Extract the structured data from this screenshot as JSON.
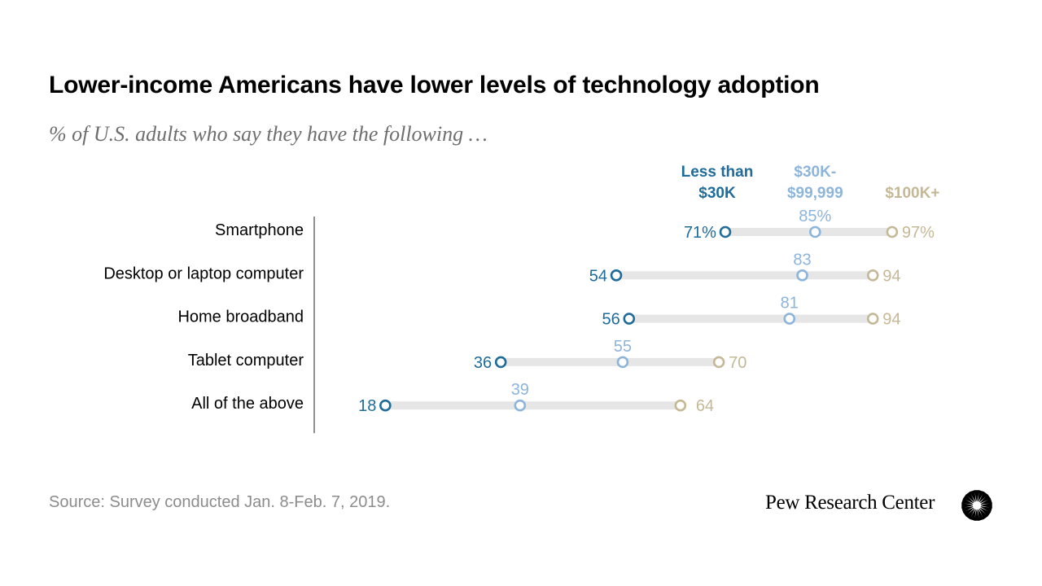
{
  "title": "Lower-income Americans have lower levels of technology adoption",
  "subtitle": "% of U.S. adults who say they have the following …",
  "source": "Source: Survey conducted Jan. 8-Feb. 7, 2019.",
  "brand": "Pew Research Center",
  "colors": {
    "low": "#1f6b9a",
    "mid": "#8db4db",
    "high": "#c4b897",
    "bar": "#e6e6e6",
    "axis": "#555555"
  },
  "chart_data": {
    "type": "dot-range",
    "title": "Lower-income Americans have lower levels of technology adoption",
    "subtitle": "% of U.S. adults who say they have the following …",
    "categories": [
      "Smartphone",
      "Desktop or laptop computer",
      "Home broadband",
      "Tablet computer",
      "All of the above"
    ],
    "series": [
      {
        "key": "low",
        "name": "Less than $30K",
        "legend_lines": [
          "Less than",
          "$30K"
        ],
        "values": [
          71,
          54,
          56,
          36,
          18
        ]
      },
      {
        "key": "mid",
        "name": "$30K-$99,999",
        "legend_lines": [
          "$30K-",
          "$99,999"
        ],
        "values": [
          85,
          83,
          81,
          55,
          39
        ]
      },
      {
        "key": "high",
        "name": "$100K+",
        "legend_lines": [
          "$100K+"
        ],
        "values": [
          97,
          94,
          94,
          70,
          64
        ]
      }
    ],
    "value_labels": {
      "low": [
        "71%",
        "54",
        "56",
        "36",
        "18"
      ],
      "mid": [
        "85%",
        "83",
        "81",
        "55",
        "39"
      ],
      "high": [
        "97%",
        "94",
        "94",
        "70",
        "64"
      ]
    },
    "xlim": [
      0,
      100
    ],
    "unit": "%",
    "grid": false,
    "legend": "top"
  }
}
